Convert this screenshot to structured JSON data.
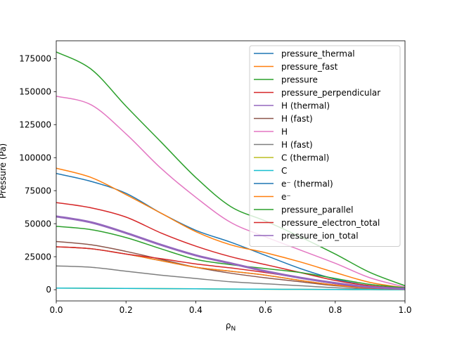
{
  "chart_data": {
    "type": "line",
    "title": "",
    "xlabel": "ρ",
    "xlabel_sub": "N",
    "ylabel": "Pressure (Pa)",
    "xlim": [
      0.0,
      1.0
    ],
    "ylim": [
      -8500,
      188500
    ],
    "x_ticks": [
      0.0,
      0.2,
      0.4,
      0.6,
      0.8,
      1.0
    ],
    "x_tick_labels": [
      "0.0",
      "0.2",
      "0.4",
      "0.6",
      "0.8",
      "1.0"
    ],
    "y_ticks": [
      0,
      25000,
      50000,
      75000,
      100000,
      125000,
      150000,
      175000
    ],
    "y_tick_labels": [
      "0",
      "25000",
      "50000",
      "75000",
      "100000",
      "125000",
      "150000",
      "175000"
    ],
    "grid": false,
    "legend_position": "top-right",
    "x": [
      0.0,
      0.1,
      0.2,
      0.3,
      0.4,
      0.5,
      0.6,
      0.7,
      0.8,
      0.9,
      1.0
    ],
    "series": [
      {
        "name": "pressure_thermal",
        "color": "#1f77b4",
        "linewidth": 1.5,
        "values": [
          88000,
          82000,
          73000,
          58000,
          45000,
          36000,
          26000,
          16000,
          8000,
          3000,
          1000
        ]
      },
      {
        "name": "pressure_fast",
        "color": "#ff7f0e",
        "linewidth": 1.5,
        "values": [
          92000,
          85000,
          72000,
          58000,
          44000,
          34000,
          28000,
          21000,
          13000,
          5500,
          1500
        ]
      },
      {
        "name": "pressure",
        "color": "#2ca02c",
        "linewidth": 1.5,
        "values": [
          180000,
          167000,
          139000,
          112000,
          85000,
          63000,
          52000,
          40000,
          27000,
          13000,
          3000
        ]
      },
      {
        "name": "pressure_perpendicular",
        "color": "#d62728",
        "linewidth": 1.5,
        "values": [
          66000,
          62000,
          55000,
          43000,
          33000,
          25000,
          19000,
          13000,
          7000,
          3000,
          1000
        ]
      },
      {
        "name": "H (thermal)",
        "color": "#9467bd",
        "linewidth": 1.5,
        "values": [
          55500,
          51000,
          43000,
          34000,
          26000,
          20000,
          14000,
          9000,
          5000,
          2000,
          700
        ]
      },
      {
        "name": "H (fast)",
        "color": "#8c564b",
        "linewidth": 1.5,
        "values": [
          36500,
          34000,
          29000,
          23000,
          17000,
          12500,
          9000,
          6000,
          3000,
          1200,
          400
        ]
      },
      {
        "name": "H",
        "color": "#e377c2",
        "linewidth": 1.5,
        "values": [
          146500,
          140000,
          118000,
          92000,
          70000,
          51000,
          40000,
          30000,
          20000,
          9000,
          2000
        ]
      },
      {
        "name": "H (fast)",
        "color": "#7f7f7f",
        "linewidth": 1.5,
        "values": [
          18000,
          17000,
          14000,
          11000,
          8500,
          6000,
          4500,
          3000,
          1500,
          600,
          200
        ]
      },
      {
        "name": "C (thermal)",
        "color": "#bcbd22",
        "linewidth": 1.5,
        "values": [
          1200,
          1100,
          950,
          800,
          650,
          500,
          380,
          260,
          150,
          60,
          20
        ]
      },
      {
        "name": "C",
        "color": "#17becf",
        "linewidth": 1.5,
        "values": [
          1200,
          1100,
          950,
          800,
          650,
          500,
          380,
          260,
          150,
          60,
          20
        ]
      },
      {
        "name": "e⁻ (thermal)",
        "color": "#1f77b4",
        "linewidth": 1.5,
        "values": [
          32500,
          31000,
          27000,
          22000,
          17000,
          14000,
          11000,
          7000,
          3500,
          1200,
          300
        ]
      },
      {
        "name": "e⁻",
        "color": "#ff7f0e",
        "linewidth": 1.5,
        "values": [
          32500,
          31000,
          27000,
          22000,
          17000,
          14000,
          11000,
          7000,
          3500,
          1200,
          300
        ]
      },
      {
        "name": "pressure_parallel",
        "color": "#2ca02c",
        "linewidth": 1.5,
        "values": [
          48000,
          45500,
          39500,
          31000,
          23000,
          19000,
          16000,
          13000,
          8500,
          4000,
          1500
        ]
      },
      {
        "name": "pressure_electron_total",
        "color": "#d62728",
        "linewidth": 1.5,
        "values": [
          32500,
          31000,
          27000,
          23500,
          19500,
          16500,
          13000,
          9000,
          4500,
          1500,
          500
        ]
      },
      {
        "name": "pressure_ion_total",
        "color": "#9467bd",
        "linewidth": 3.0,
        "values": [
          55500,
          51000,
          43000,
          34000,
          26000,
          20000,
          14000,
          9000,
          5000,
          2000,
          700
        ]
      }
    ]
  }
}
